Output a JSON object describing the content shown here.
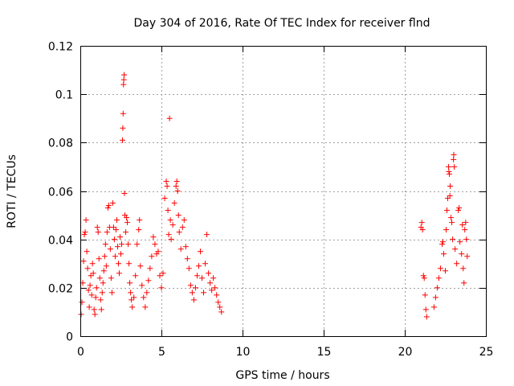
{
  "chart_data": {
    "type": "scatter",
    "title": "Day 304 of 2016, Rate Of TEC Index for receiver flnd",
    "xlabel": "GPS time / hours",
    "ylabel": "ROTI / TECUs",
    "xlim": [
      0,
      25
    ],
    "ylim": [
      0,
      0.12
    ],
    "xticks": [
      0,
      5,
      10,
      15,
      20,
      25
    ],
    "yticks": [
      0,
      0.02,
      0.04,
      0.06,
      0.08,
      0.1,
      0.12
    ],
    "xtick_labels": [
      "0",
      "5",
      "10",
      "15",
      "20",
      "25"
    ],
    "ytick_labels": [
      "0",
      "0.02",
      "0.04",
      "0.06",
      "0.08",
      "0.1",
      "0.12"
    ],
    "grid": true,
    "marker": "+",
    "color": "#ff0000",
    "series": [
      {
        "name": "ROTI",
        "points": [
          [
            0.05,
            0.009
          ],
          [
            0.1,
            0.014
          ],
          [
            0.15,
            0.022
          ],
          [
            0.2,
            0.031
          ],
          [
            0.25,
            0.042
          ],
          [
            0.3,
            0.043
          ],
          [
            0.35,
            0.048
          ],
          [
            0.4,
            0.035
          ],
          [
            0.45,
            0.028
          ],
          [
            0.5,
            0.019
          ],
          [
            0.55,
            0.012
          ],
          [
            0.6,
            0.021
          ],
          [
            0.65,
            0.025
          ],
          [
            0.7,
            0.017
          ],
          [
            0.75,
            0.03
          ],
          [
            0.8,
            0.026
          ],
          [
            0.85,
            0.011
          ],
          [
            0.9,
            0.009
          ],
          [
            0.95,
            0.016
          ],
          [
            1.0,
            0.02
          ],
          [
            1.05,
            0.045
          ],
          [
            1.1,
            0.043
          ],
          [
            1.15,
            0.032
          ],
          [
            1.2,
            0.024
          ],
          [
            1.25,
            0.015
          ],
          [
            1.3,
            0.011
          ],
          [
            1.35,
            0.018
          ],
          [
            1.4,
            0.022
          ],
          [
            1.45,
            0.027
          ],
          [
            1.5,
            0.033
          ],
          [
            1.55,
            0.038
          ],
          [
            1.6,
            0.029
          ],
          [
            1.65,
            0.043
          ],
          [
            1.7,
            0.053
          ],
          [
            1.75,
            0.054
          ],
          [
            1.8,
            0.045
          ],
          [
            1.85,
            0.036
          ],
          [
            1.9,
            0.024
          ],
          [
            1.95,
            0.018
          ],
          [
            2.0,
            0.055
          ],
          [
            2.05,
            0.045
          ],
          [
            2.1,
            0.04
          ],
          [
            2.15,
            0.033
          ],
          [
            2.2,
            0.044
          ],
          [
            2.25,
            0.048
          ],
          [
            2.3,
            0.037
          ],
          [
            2.35,
            0.03
          ],
          [
            2.4,
            0.026
          ],
          [
            2.45,
            0.041
          ],
          [
            2.5,
            0.034
          ],
          [
            2.55,
            0.038
          ],
          [
            2.6,
            0.081
          ],
          [
            2.62,
            0.086
          ],
          [
            2.64,
            0.092
          ],
          [
            2.66,
            0.104
          ],
          [
            2.68,
            0.106
          ],
          [
            2.7,
            0.108
          ],
          [
            2.72,
            0.059
          ],
          [
            2.75,
            0.05
          ],
          [
            2.8,
            0.043
          ],
          [
            2.85,
            0.049
          ],
          [
            2.9,
            0.047
          ],
          [
            2.95,
            0.038
          ],
          [
            3.0,
            0.03
          ],
          [
            3.05,
            0.022
          ],
          [
            3.1,
            0.018
          ],
          [
            3.15,
            0.015
          ],
          [
            3.2,
            0.012
          ],
          [
            3.3,
            0.016
          ],
          [
            3.4,
            0.025
          ],
          [
            3.5,
            0.038
          ],
          [
            3.6,
            0.044
          ],
          [
            3.65,
            0.048
          ],
          [
            3.7,
            0.029
          ],
          [
            3.8,
            0.021
          ],
          [
            3.9,
            0.016
          ],
          [
            4.0,
            0.012
          ],
          [
            4.1,
            0.018
          ],
          [
            4.2,
            0.023
          ],
          [
            4.3,
            0.028
          ],
          [
            4.4,
            0.033
          ],
          [
            4.5,
            0.041
          ],
          [
            4.6,
            0.038
          ],
          [
            4.7,
            0.034
          ],
          [
            4.8,
            0.035
          ],
          [
            4.9,
            0.025
          ],
          [
            5.0,
            0.02
          ],
          [
            5.1,
            0.026
          ],
          [
            5.2,
            0.057
          ],
          [
            5.3,
            0.064
          ],
          [
            5.35,
            0.062
          ],
          [
            5.4,
            0.052
          ],
          [
            5.45,
            0.042
          ],
          [
            5.5,
            0.09
          ],
          [
            5.55,
            0.048
          ],
          [
            5.6,
            0.04
          ],
          [
            5.7,
            0.046
          ],
          [
            5.8,
            0.055
          ],
          [
            5.9,
            0.062
          ],
          [
            5.95,
            0.064
          ],
          [
            6.0,
            0.06
          ],
          [
            6.05,
            0.05
          ],
          [
            6.1,
            0.043
          ],
          [
            6.2,
            0.036
          ],
          [
            6.3,
            0.045
          ],
          [
            6.4,
            0.048
          ],
          [
            6.5,
            0.037
          ],
          [
            6.6,
            0.032
          ],
          [
            6.7,
            0.028
          ],
          [
            6.8,
            0.021
          ],
          [
            6.9,
            0.018
          ],
          [
            7.0,
            0.015
          ],
          [
            7.1,
            0.02
          ],
          [
            7.2,
            0.025
          ],
          [
            7.3,
            0.029
          ],
          [
            7.4,
            0.035
          ],
          [
            7.5,
            0.024
          ],
          [
            7.6,
            0.018
          ],
          [
            7.7,
            0.03
          ],
          [
            7.8,
            0.042
          ],
          [
            7.9,
            0.026
          ],
          [
            8.0,
            0.022
          ],
          [
            8.1,
            0.019
          ],
          [
            8.2,
            0.024
          ],
          [
            8.3,
            0.02
          ],
          [
            8.4,
            0.017
          ],
          [
            8.5,
            0.014
          ],
          [
            8.6,
            0.012
          ],
          [
            8.7,
            0.01
          ],
          [
            21.0,
            0.045
          ],
          [
            21.05,
            0.047
          ],
          [
            21.1,
            0.044
          ],
          [
            21.15,
            0.025
          ],
          [
            21.2,
            0.024
          ],
          [
            21.25,
            0.017
          ],
          [
            21.3,
            0.011
          ],
          [
            21.35,
            0.008
          ],
          [
            21.8,
            0.012
          ],
          [
            21.9,
            0.016
          ],
          [
            22.0,
            0.02
          ],
          [
            22.1,
            0.024
          ],
          [
            22.2,
            0.028
          ],
          [
            22.3,
            0.038
          ],
          [
            22.35,
            0.039
          ],
          [
            22.4,
            0.034
          ],
          [
            22.5,
            0.027
          ],
          [
            22.55,
            0.044
          ],
          [
            22.6,
            0.052
          ],
          [
            22.65,
            0.057
          ],
          [
            22.7,
            0.07
          ],
          [
            22.72,
            0.068
          ],
          [
            22.75,
            0.067
          ],
          [
            22.78,
            0.058
          ],
          [
            22.8,
            0.062
          ],
          [
            22.85,
            0.049
          ],
          [
            22.9,
            0.047
          ],
          [
            22.95,
            0.04
          ],
          [
            23.0,
            0.073
          ],
          [
            23.02,
            0.075
          ],
          [
            23.05,
            0.07
          ],
          [
            23.1,
            0.036
          ],
          [
            23.2,
            0.03
          ],
          [
            23.3,
            0.052
          ],
          [
            23.35,
            0.053
          ],
          [
            23.4,
            0.039
          ],
          [
            23.5,
            0.034
          ],
          [
            23.55,
            0.046
          ],
          [
            23.6,
            0.028
          ],
          [
            23.65,
            0.022
          ],
          [
            23.7,
            0.044
          ],
          [
            23.75,
            0.047
          ],
          [
            23.8,
            0.04
          ],
          [
            23.85,
            0.033
          ]
        ]
      }
    ]
  }
}
